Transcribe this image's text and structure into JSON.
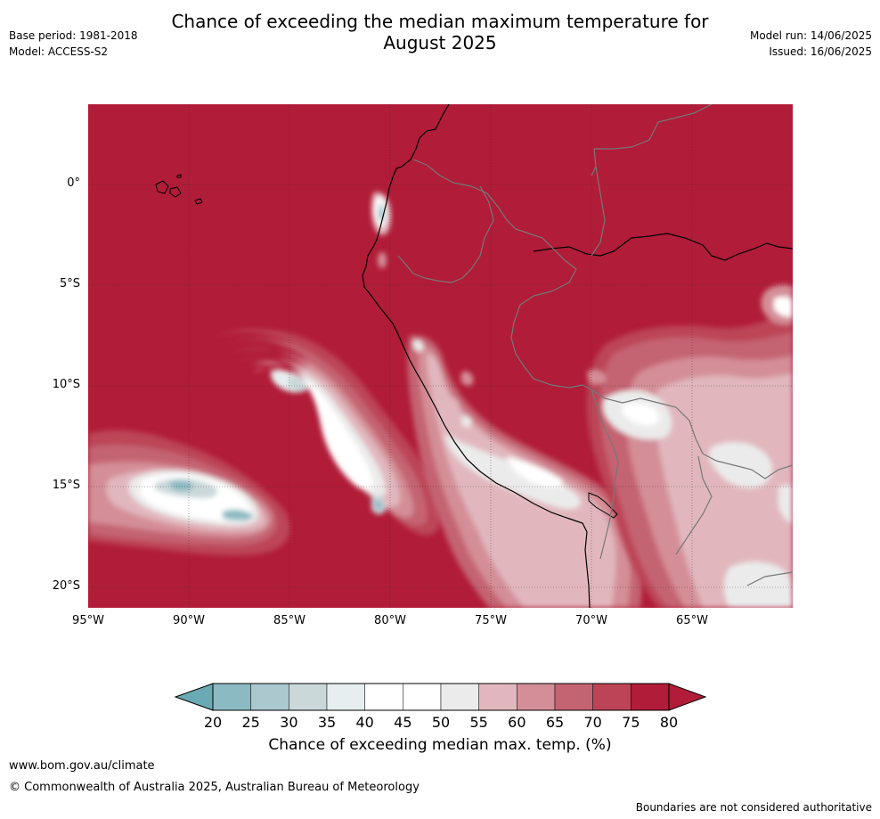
{
  "title_line1": "Chance of exceeding the median maximum temperature for",
  "title_line2": "August 2025",
  "meta_left": {
    "base_period": "Base period: 1981-2018",
    "model": "Model: ACCESS-S2"
  },
  "meta_right": {
    "model_run": "Model run: 14/06/2025",
    "issued": "Issued: 16/06/2025"
  },
  "map": {
    "lat_labels": [
      "0°",
      "5°S",
      "10°S",
      "15°S",
      "20°S"
    ],
    "lon_labels": [
      "95°W",
      "90°W",
      "85°W",
      "80°W",
      "75°W",
      "70°W",
      "65°W"
    ],
    "background_color": "#b11c38"
  },
  "colorbar": {
    "ticks": [
      "20",
      "25",
      "30",
      "35",
      "40",
      "45",
      "50",
      "55",
      "60",
      "65",
      "70",
      "75",
      "80"
    ],
    "colors": [
      "#6aaab5",
      "#8cbac3",
      "#aac8ce",
      "#cad8da",
      "#e7eeef",
      "#ffffff",
      "#ffffff",
      "#ebebeb",
      "#e1b7bd",
      "#d48e97",
      "#c46472",
      "#bc4456",
      "#b11c38"
    ],
    "label": "Chance of exceeding median max. temp. (%)"
  },
  "footer": {
    "url": "www.bom.gov.au/climate",
    "copyright": "© Commonwealth of Australia 2025, Australian Bureau of Meteorology",
    "note": "Boundaries are not considered authoritative"
  }
}
